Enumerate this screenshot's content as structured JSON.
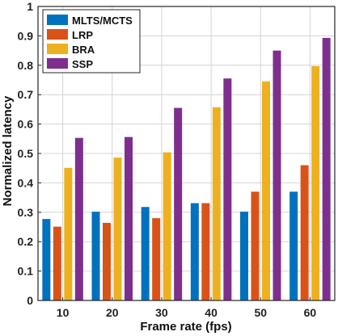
{
  "chart_data": {
    "type": "bar",
    "xlabel": "Frame rate (fps)",
    "ylabel": "Normalized latency",
    "categories": [
      "10",
      "20",
      "30",
      "40",
      "50",
      "60"
    ],
    "ylim": [
      0,
      1
    ],
    "yticks": [
      "0",
      "0.1",
      "0.2",
      "0.3",
      "0.4",
      "0.5",
      "0.6",
      "0.7",
      "0.8",
      "0.9",
      "1"
    ],
    "grid": true,
    "legend_position": "top-left",
    "series": [
      {
        "name": "MLTS/MCTS",
        "color": "#0072BD",
        "values": [
          0.277,
          0.302,
          0.318,
          0.331,
          0.302,
          0.37
        ]
      },
      {
        "name": "LRP",
        "color": "#D95319",
        "values": [
          0.251,
          0.264,
          0.28,
          0.331,
          0.37,
          0.46
        ]
      },
      {
        "name": "BRA",
        "color": "#EDB120",
        "values": [
          0.451,
          0.486,
          0.504,
          0.657,
          0.745,
          0.797
        ]
      },
      {
        "name": "SSP",
        "color": "#7E2F8E",
        "values": [
          0.553,
          0.556,
          0.655,
          0.755,
          0.85,
          0.893
        ]
      }
    ]
  }
}
